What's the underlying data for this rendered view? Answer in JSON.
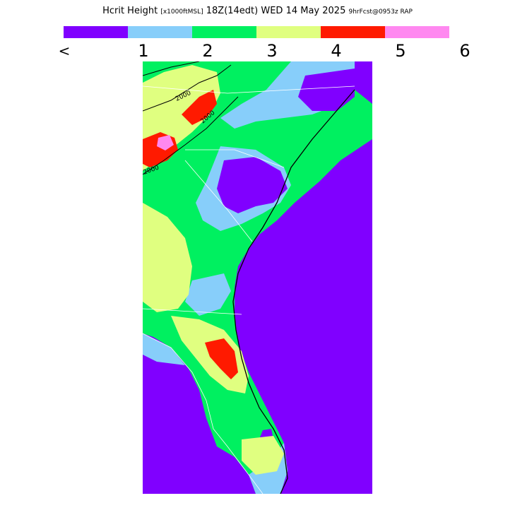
{
  "title": {
    "label": "Hcrit Height",
    "units": "[x1000ftMSL]",
    "valid_time": "18Z(14edt) WED 14 May 2025",
    "forecast": "9hrFcst@0953z RAP"
  },
  "legend": {
    "colors": [
      "#8000ff",
      "#87cefa",
      "#00f060",
      "#e0ff80",
      "#ff1a00",
      "#ff88f0"
    ],
    "ticks": [
      "<",
      "1",
      "2",
      "3",
      "4",
      "5",
      "6"
    ]
  },
  "map": {
    "contour_labels": [
      "2000",
      "2000",
      "2000"
    ],
    "region": "Southeastern United States"
  }
}
